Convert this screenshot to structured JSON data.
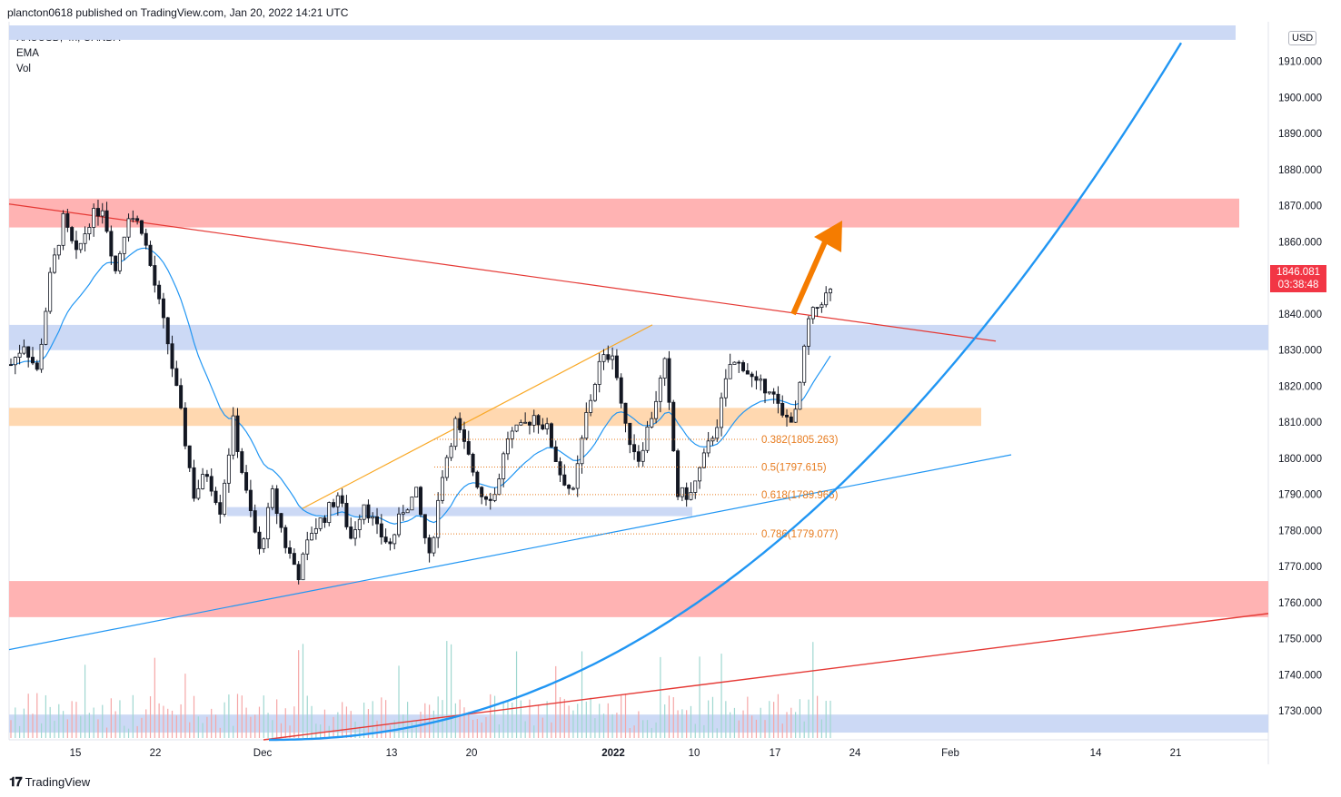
{
  "header": {
    "published": "plancton0618 published on TradingView.com, Jan 20, 2022 14:21 UTC"
  },
  "legend": {
    "symbol": "XAUUSD, 4h, OANDA",
    "ema": "EMA",
    "vol": "Vol"
  },
  "axis": {
    "currency": "USD"
  },
  "last_price": {
    "value": "1846.081",
    "countdown": "03:38:48"
  },
  "footer": {
    "brand": "TradingView"
  },
  "fib_levels": [
    {
      "label": "0.382(1805.263)",
      "value": 1805.263
    },
    {
      "label": "0.5(1797.615)",
      "value": 1797.615
    },
    {
      "label": "0.618(1789.966)",
      "value": 1789.966
    },
    {
      "label": "0.786(1779.077)",
      "value": 1779.077
    }
  ],
  "colors": {
    "up": "#ffffff",
    "down": "#131722",
    "ema": "#2196f3",
    "resist_zone": "#ffb3b3",
    "support_zone": "#ccd9f5",
    "fib_zone": "#ffd8b0",
    "fib_text": "#e77c1f",
    "trend_red": "#e53935",
    "trend_blue": "#2196f3",
    "arrow": "#f57c00"
  },
  "chart_data": {
    "type": "candlestick",
    "symbol": "XAUUSD",
    "timeframe": "4h",
    "exchange": "OANDA",
    "ylim": [
      1722,
      1921
    ],
    "y_ticks": [
      1730,
      1740,
      1750,
      1760,
      1770,
      1780,
      1790,
      1800,
      1810,
      1820,
      1830,
      1840,
      1850,
      1860,
      1870,
      1880,
      1890,
      1900,
      1910
    ],
    "y_tick_labels": [
      "1730.000",
      "1740.000",
      "1750.000",
      "1760.000",
      "1770.000",
      "1780.000",
      "1790.000",
      "1800.000",
      "1810.000",
      "1820.000",
      "1830.000",
      "1840.000",
      "1850.000",
      "1860.000",
      "1870.000",
      "1880.000",
      "1890.000",
      "1900.000",
      "1910.000"
    ],
    "x_ticks": [
      "15",
      "22",
      "Dec",
      "13",
      "20",
      "2022",
      "10",
      "17",
      "24",
      "Feb",
      "14",
      "21"
    ],
    "close_path": [
      [
        0,
        1826
      ],
      [
        3,
        1832
      ],
      [
        6,
        1824
      ],
      [
        9,
        1850
      ],
      [
        12,
        1866
      ],
      [
        15,
        1856
      ],
      [
        18,
        1866
      ],
      [
        21,
        1870
      ],
      [
        24,
        1852
      ],
      [
        27,
        1868
      ],
      [
        30,
        1864
      ],
      [
        33,
        1848
      ],
      [
        36,
        1832
      ],
      [
        39,
        1812
      ],
      [
        42,
        1790
      ],
      [
        45,
        1796
      ],
      [
        48,
        1786
      ],
      [
        51,
        1810
      ],
      [
        54,
        1790
      ],
      [
        57,
        1774
      ],
      [
        60,
        1790
      ],
      [
        63,
        1776
      ],
      [
        66,
        1768
      ],
      [
        69,
        1780
      ],
      [
        72,
        1784
      ],
      [
        75,
        1790
      ],
      [
        78,
        1778
      ],
      [
        81,
        1788
      ],
      [
        84,
        1780
      ],
      [
        87,
        1776
      ],
      [
        90,
        1786
      ],
      [
        93,
        1790
      ],
      [
        96,
        1772
      ],
      [
        99,
        1796
      ],
      [
        102,
        1810
      ],
      [
        105,
        1800
      ],
      [
        108,
        1790
      ],
      [
        111,
        1790
      ],
      [
        114,
        1806
      ],
      [
        117,
        1808
      ],
      [
        120,
        1812
      ],
      [
        123,
        1808
      ],
      [
        126,
        1796
      ],
      [
        129,
        1790
      ],
      [
        132,
        1812
      ],
      [
        135,
        1826
      ],
      [
        138,
        1830
      ],
      [
        141,
        1808
      ],
      [
        144,
        1800
      ],
      [
        147,
        1812
      ],
      [
        150,
        1826
      ],
      [
        153,
        1790
      ],
      [
        156,
        1790
      ],
      [
        159,
        1800
      ],
      [
        162,
        1810
      ],
      [
        165,
        1826
      ],
      [
        168,
        1826
      ],
      [
        171,
        1820
      ],
      [
        174,
        1820
      ],
      [
        177,
        1811
      ],
      [
        180,
        1812
      ],
      [
        183,
        1838
      ],
      [
        186,
        1844
      ],
      [
        188,
        1846
      ]
    ],
    "ema_period_note": "",
    "volume_baseline": 1724
  }
}
